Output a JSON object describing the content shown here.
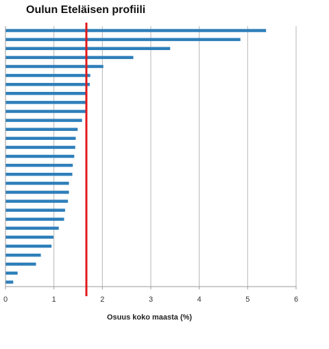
{
  "chart_data": {
    "type": "bar",
    "orientation": "horizontal",
    "title": "Oulun Eteläisen profiili",
    "xlabel": "Osuus koko maasta (%)",
    "ylabel": "",
    "xlim": [
      0,
      6
    ],
    "x_ticks": [
      "0",
      "1",
      "2",
      "3",
      "4",
      "5",
      "6"
    ],
    "grid": "vertical",
    "legend": "none",
    "bar_color": "#2e7fba",
    "reference_line": {
      "value": 1.67,
      "color": "#e0191b"
    },
    "values": [
      5.38,
      4.85,
      3.4,
      2.64,
      2.02,
      1.75,
      1.74,
      1.66,
      1.65,
      1.65,
      1.58,
      1.49,
      1.45,
      1.44,
      1.42,
      1.39,
      1.38,
      1.31,
      1.31,
      1.29,
      1.23,
      1.21,
      1.1,
      0.99,
      0.95,
      0.73,
      0.63,
      0.25,
      0.16
    ]
  }
}
